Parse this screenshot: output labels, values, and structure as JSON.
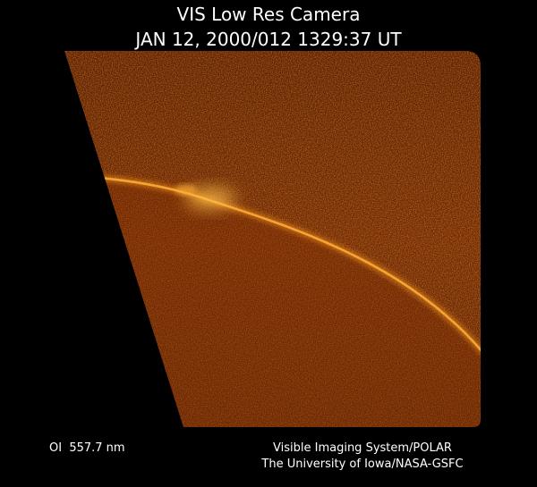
{
  "header": {
    "title": "VIS Low Res Camera",
    "subtitle": "JAN 12, 2000/012 1329:37 UT"
  },
  "footer": {
    "filter": "OI  557.7 nm",
    "credit": [
      "Visible Imaging System/POLAR",
      "The University of Iowa/NASA-GSFC"
    ]
  }
}
